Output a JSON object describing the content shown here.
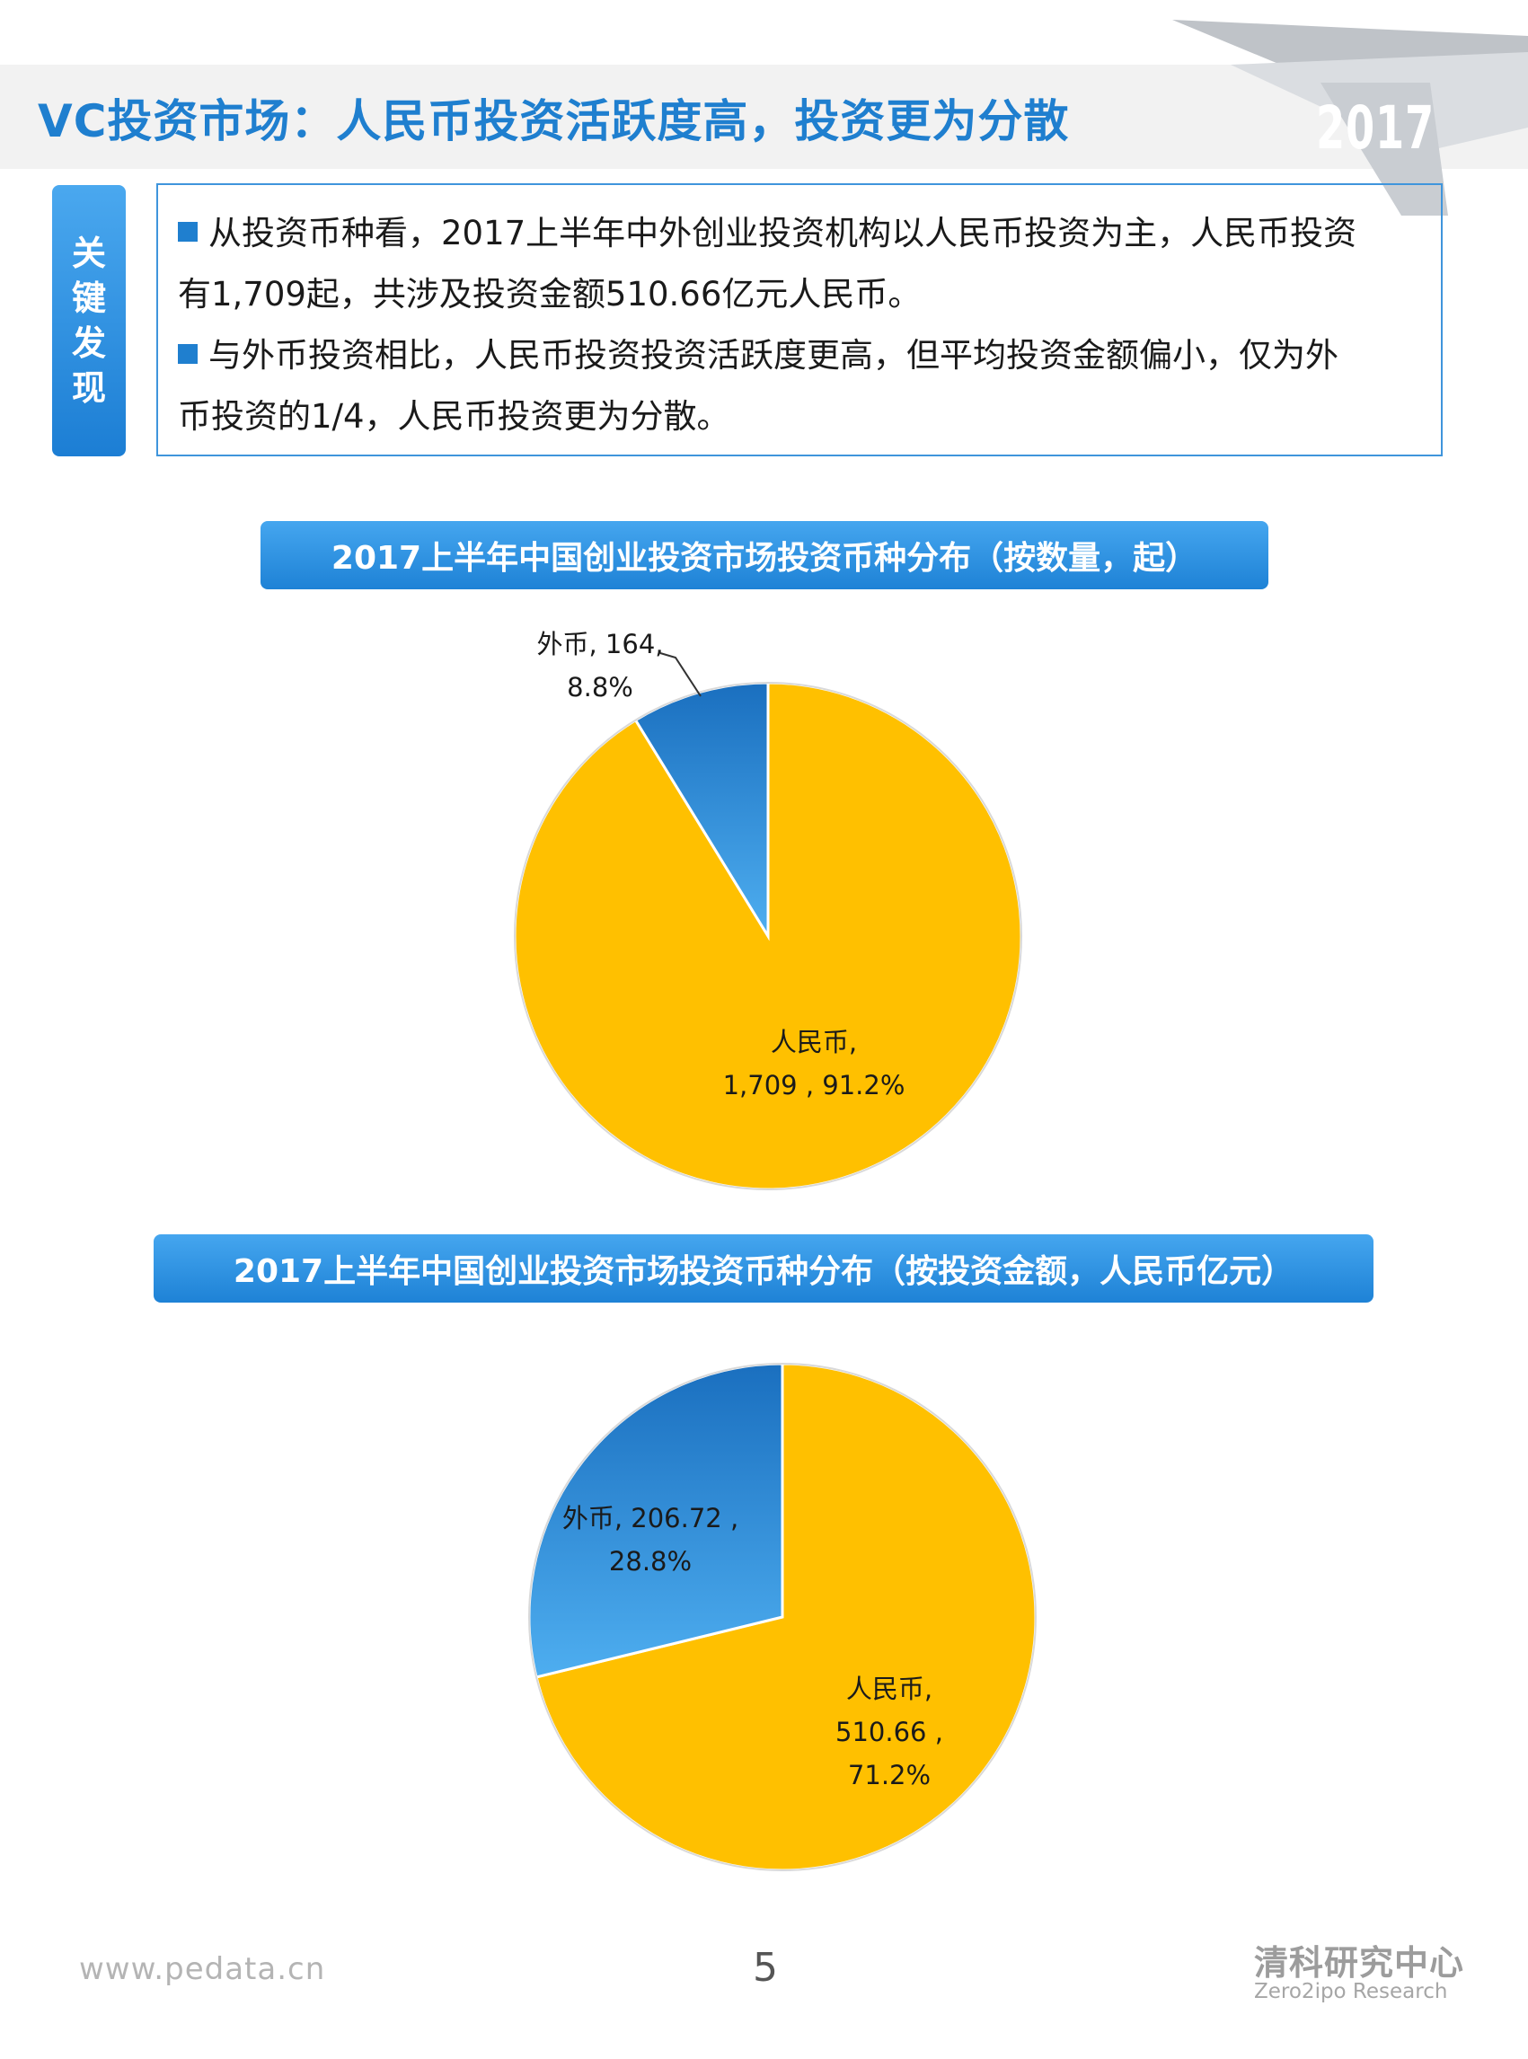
{
  "header": {
    "title": "VC投资市场：人民币投资活跃度高，投资更为分散",
    "year": "2017"
  },
  "key_findings": {
    "tab_label": [
      "关",
      "键",
      "发",
      "现"
    ],
    "lines": [
      "从投资币种看，2017上半年中外创业投资机构以人民币投资为主，人民币投资",
      "有1,709起，共涉及投资金额510.66亿元人民币。",
      "与外币投资相比，人民币投资投资活跃度更高，但平均投资金额偏小，仅为外",
      "币投资的1/4，人民币投资更为分散。"
    ]
  },
  "chart_data": [
    {
      "type": "pie",
      "title": "2017上半年中国创业投资市场投资币种分布（按数量，起）",
      "series": [
        {
          "category": "人民币",
          "value": 1709,
          "percent": 91.2,
          "label_lines": [
            "人民币,",
            "1,709 , 91.2%"
          ],
          "color": "#ffc000"
        },
        {
          "category": "外币",
          "value": 164,
          "percent": 8.8,
          "label_lines": [
            "外币, 164,",
            "8.8%"
          ],
          "color": "#2e86d6"
        }
      ]
    },
    {
      "type": "pie",
      "title": "2017上半年中国创业投资市场投资币种分布（按投资金额，人民币亿元）",
      "series": [
        {
          "category": "人民币",
          "value": 510.66,
          "percent": 71.2,
          "label_lines": [
            "人民币,",
            "510.66 ,",
            "71.2%"
          ],
          "color": "#ffc000"
        },
        {
          "category": "外币",
          "value": 206.72,
          "percent": 28.8,
          "label_lines": [
            "外币, 206.72 ,",
            "28.8%"
          ],
          "color": "#2e86d6"
        }
      ]
    }
  ],
  "footer": {
    "url": "www.pedata.cn",
    "page_number": "5",
    "brand_cn": "清科研究中心",
    "brand_en": "Zero2ipo Research"
  }
}
